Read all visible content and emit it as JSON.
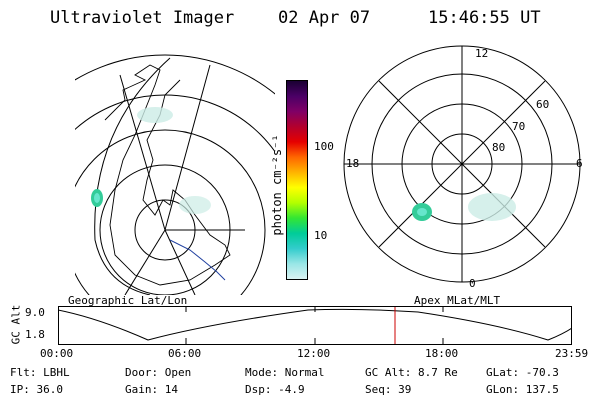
{
  "header": {
    "instrument": "Ultraviolet Imager",
    "date": "02 Apr 07",
    "time": "15:46:55 UT"
  },
  "colorbar": {
    "unit_label": "photon cm⁻²s⁻¹",
    "ticks": [
      "100",
      "10"
    ],
    "colors": [
      "#1a0033",
      "#4b0066",
      "#800066",
      "#b3002d",
      "#e60000",
      "#ff6600",
      "#ffb300",
      "#ffff00",
      "#b3ff00",
      "#33e633",
      "#00cc99",
      "#33cccc",
      "#99e6e6",
      "#d9f2f2"
    ]
  },
  "maps": {
    "left_label": "Geographic Lat/Lon",
    "right_label": "Apex MLat/MLT",
    "polar_hour_labels": {
      "top": "12",
      "left": "18",
      "right": "6",
      "bottom": "0"
    },
    "polar_lat_labels": [
      "60",
      "70",
      "80"
    ]
  },
  "altitude_plot": {
    "ylabel": "GC Alt",
    "ymax": "9.0",
    "ymin": "1.8",
    "x_ticks": [
      "00:00",
      "06:00",
      "12:00",
      "18:00",
      "23:59"
    ]
  },
  "status": {
    "filter": "Flt: LBHL",
    "door": "Door: Open",
    "mode": "Mode: Normal",
    "gc_alt": "GC Alt: 8.7 Re",
    "glat": "GLat: -70.3",
    "ip": "IP: 36.0",
    "gain": "Gain: 14",
    "dsp": "Dsp:   -4.9",
    "seq": "Seq: 39",
    "glon": "GLon: 137.5"
  },
  "accent_colors": {
    "orbit_marker": "#cc0000",
    "aurora_spot": "#33cc99"
  }
}
